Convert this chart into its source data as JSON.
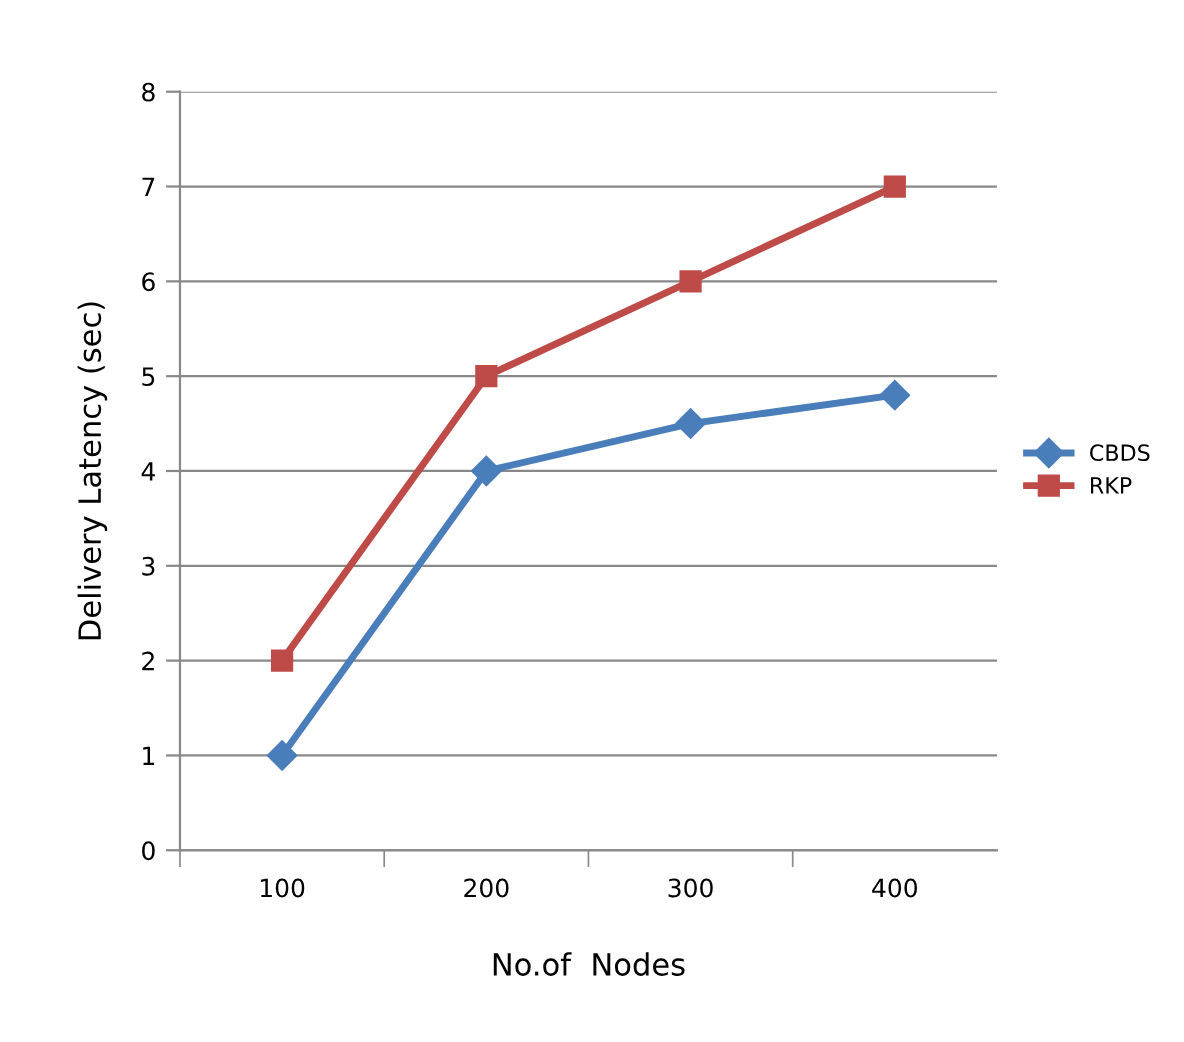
{
  "chart_data": {
    "type": "line",
    "xlabel": "No.of  Nodes",
    "ylabel": "Delivery Latency (sec)",
    "categories": [
      "100",
      "200",
      "300",
      "400"
    ],
    "series": [
      {
        "name": "CBDS",
        "color": "#4a7ebb",
        "marker": "diamond",
        "values": [
          1,
          4,
          4.5,
          4.8
        ]
      },
      {
        "name": "RKP",
        "color": "#be4b48",
        "marker": "square",
        "values": [
          2,
          5,
          6,
          7
        ]
      }
    ],
    "ylim": [
      0,
      8
    ],
    "yticks": [
      0,
      1,
      2,
      3,
      4,
      5,
      6,
      7,
      8
    ],
    "grid": "y",
    "legend": "right",
    "line_style": "solid"
  }
}
